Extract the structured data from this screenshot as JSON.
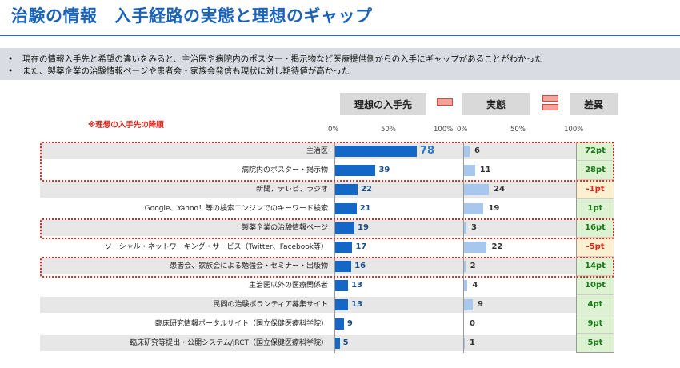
{
  "title": "治験の情報　入手経路の実態と理想のギャップ",
  "summary": {
    "bullet": "•",
    "lines": [
      "現在の情報入手先と希望の違いをみると、主治医や病院内のポスター・掲示物など医療提供側からの入手にギャップがあることがわかった",
      "また、製薬企業の治験情報ページや患者会・家族会発信も現状に対し期待値が高かった"
    ]
  },
  "headers": {
    "ideal": "理想の入手先",
    "actual": "実態",
    "gap": "差異"
  },
  "note": "※理想の入手先の降順",
  "colors": {
    "title": "#1a63b8",
    "ideal_bar": "#1467c4",
    "actual_bar": "#a7c7ec",
    "highlight": "#e0241b",
    "gap_positive_bg": "#dcf2d0",
    "gap_negative_bg": "#fbf1d0"
  },
  "chart_data": {
    "type": "bar",
    "categories": [
      "主治医",
      "病院内のポスター・掲示物",
      "新聞、テレビ、ラジオ",
      "Google、Yahoo！等の検索エンジンでのキーワード検索",
      "製薬企業の治験情報ページ",
      "ソーシャル・ネットワーキング・サービス（Twitter、Facebook等）",
      "患者会、家族会による勉強会・セミナー・出版物",
      "主治医以外の医療関係者",
      "民間の治験ボランティア募集サイト",
      "臨床研究情報ポータルサイト（国立保健医療科学院）",
      "臨床研究等提出・公開システム/jRCT（国立保健医療科学院）"
    ],
    "series": [
      {
        "name": "理想の入手先",
        "values": [
          78,
          39,
          22,
          21,
          19,
          17,
          16,
          13,
          13,
          9,
          5
        ]
      },
      {
        "name": "実態",
        "values": [
          6,
          11,
          24,
          19,
          3,
          22,
          2,
          4,
          9,
          0,
          1
        ]
      }
    ],
    "difference": [
      "72pt",
      "28pt",
      "-1pt",
      "1pt",
      "16pt",
      "-5pt",
      "14pt",
      "10pt",
      "4pt",
      "9pt",
      "5pt"
    ],
    "highlighted": [
      true,
      true,
      false,
      false,
      true,
      false,
      true,
      false,
      false,
      false,
      false
    ],
    "xticks": [
      "0%",
      "50%",
      "100%"
    ],
    "xlim": [
      0,
      100
    ],
    "sort_note": "※理想の入手先の降順"
  }
}
